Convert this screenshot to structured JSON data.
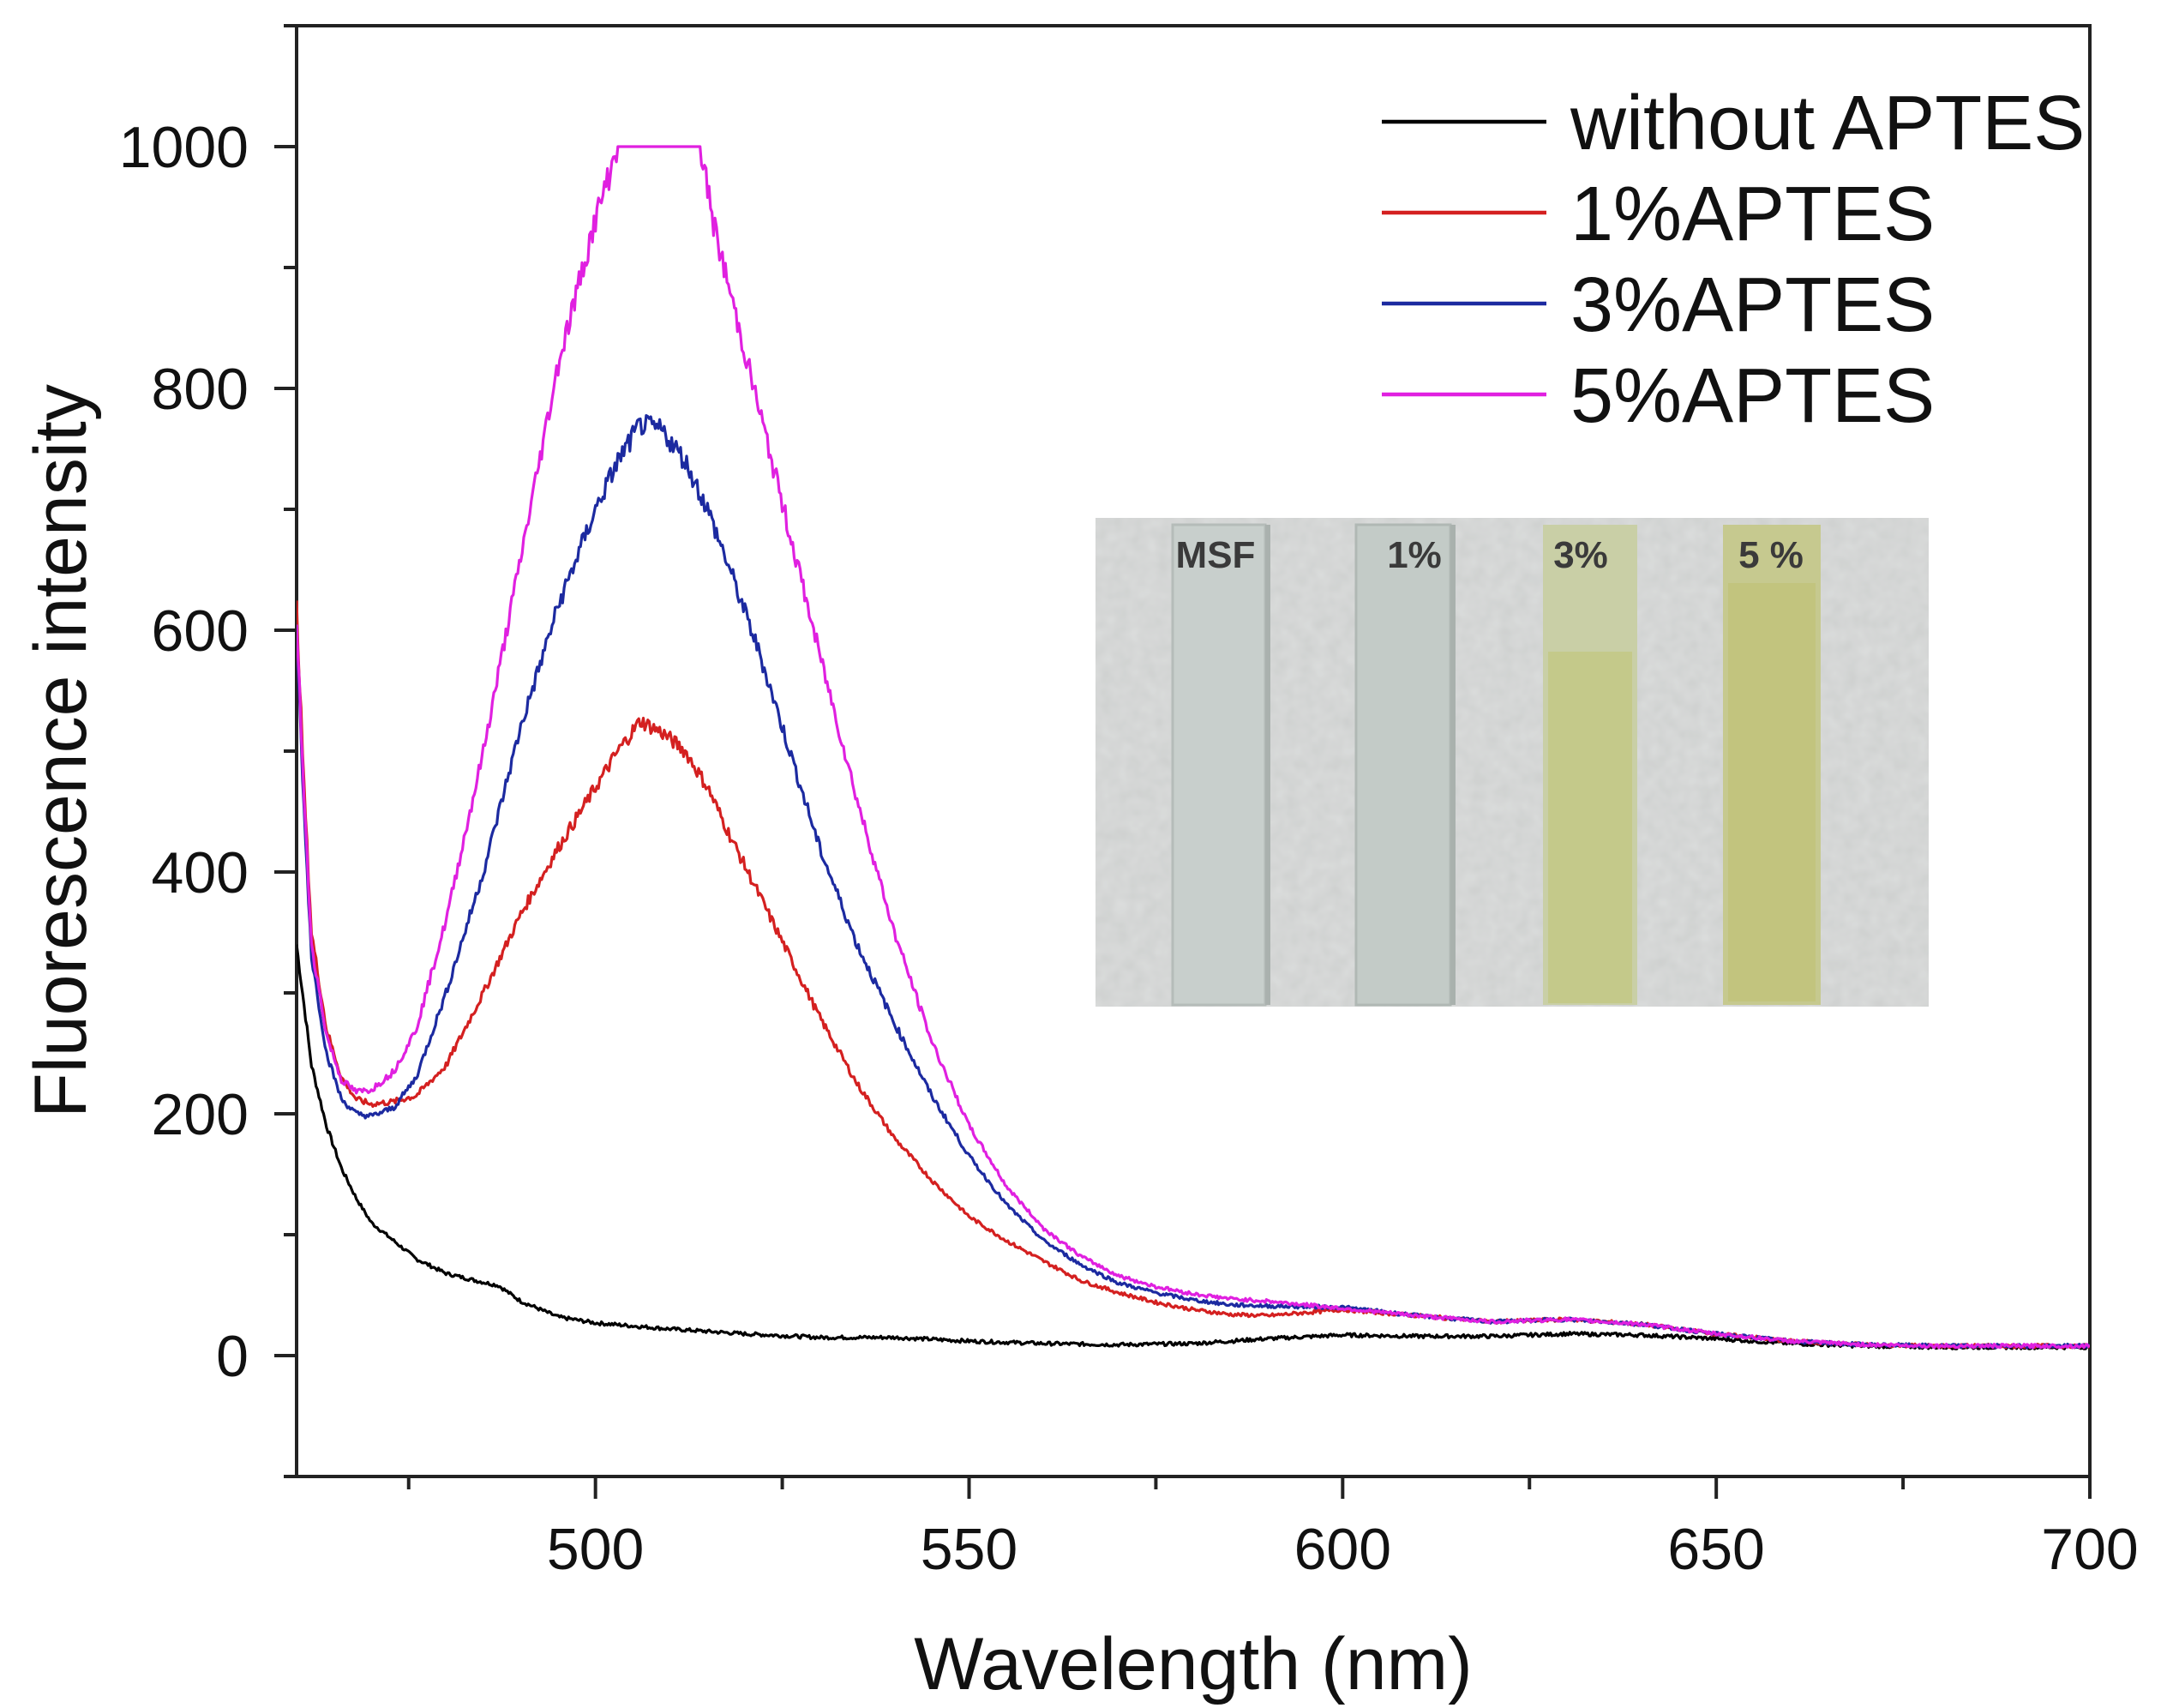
{
  "chart_data": {
    "type": "line",
    "title": "",
    "xlabel": "Wavelength (nm)",
    "ylabel": "Fluorescence intensity",
    "xlim": [
      460,
      700
    ],
    "ylim": [
      -100,
      1100
    ],
    "xticks": [
      500,
      550,
      600,
      650,
      700
    ],
    "yticks": [
      0,
      200,
      400,
      600,
      800,
      1000
    ],
    "grid": false,
    "legend_position": "top-right",
    "series": [
      {
        "name": "without APTES",
        "color": "#000000",
        "x": [
          460,
          461,
          462,
          464,
          466,
          468,
          470,
          473,
          476,
          480,
          484,
          487,
          490,
          495,
          500,
          510,
          520,
          530,
          540,
          550,
          560,
          570,
          580,
          590,
          600,
          610,
          620,
          630,
          640,
          650,
          660,
          670,
          680,
          690,
          700
        ],
        "y": [
          340,
          290,
          240,
          190,
          155,
          130,
          110,
          95,
          80,
          68,
          62,
          58,
          45,
          32,
          27,
          22,
          18,
          15,
          15,
          12,
          10,
          9,
          10,
          14,
          17,
          16,
          16,
          18,
          17,
          14,
          10,
          8,
          7,
          7,
          7
        ]
      },
      {
        "name": "1%APTES",
        "color": "#d42020",
        "x": [
          460,
          461,
          462,
          464,
          466,
          468,
          470,
          473,
          476,
          480,
          485,
          490,
          495,
          500,
          503,
          506,
          509,
          512,
          515,
          518,
          522,
          526,
          530,
          535,
          540,
          545,
          550,
          555,
          560,
          565,
          570,
          575,
          580,
          585,
          590,
          600,
          610,
          620,
          630,
          640,
          650,
          660,
          670,
          680,
          690,
          700
        ],
        "y": [
          620,
          470,
          350,
          270,
          230,
          212,
          208,
          210,
          215,
          240,
          300,
          365,
          420,
          470,
          500,
          525,
          515,
          500,
          470,
          430,
          380,
          330,
          280,
          225,
          180,
          145,
          115,
          95,
          78,
          62,
          52,
          44,
          38,
          34,
          33,
          38,
          33,
          28,
          30,
          26,
          18,
          12,
          9,
          8,
          8,
          8
        ]
      },
      {
        "name": "3%APTES",
        "color": "#1c2aa0",
        "x": [
          460,
          461,
          462,
          464,
          466,
          468,
          470,
          473,
          476,
          480,
          485,
          490,
          495,
          500,
          503,
          506,
          509,
          512,
          515,
          518,
          522,
          526,
          530,
          535,
          540,
          545,
          550,
          555,
          560,
          565,
          570,
          575,
          580,
          585,
          590,
          600,
          610,
          620,
          630,
          640,
          650,
          660,
          670,
          680,
          690,
          700
        ],
        "y": [
          600,
          450,
          330,
          250,
          212,
          200,
          198,
          205,
          230,
          300,
          400,
          520,
          620,
          700,
          740,
          770,
          765,
          740,
          700,
          650,
          580,
          500,
          420,
          340,
          275,
          215,
          165,
          125,
          95,
          75,
          60,
          52,
          46,
          42,
          41,
          40,
          33,
          28,
          30,
          26,
          18,
          12,
          9,
          8,
          8,
          8
        ]
      },
      {
        "name": "5%APTES",
        "color": "#e020e0",
        "x": [
          460,
          461,
          462,
          464,
          466,
          468,
          470,
          473,
          476,
          480,
          485,
          490,
          495,
          500,
          503,
          506,
          509,
          512,
          514,
          516,
          518,
          522,
          526,
          530,
          535,
          540,
          545,
          550,
          555,
          560,
          565,
          570,
          575,
          580,
          585,
          590,
          600,
          610,
          620,
          630,
          640,
          650,
          660,
          670,
          680,
          690,
          700
        ],
        "y": [
          610,
          460,
          340,
          265,
          228,
          218,
          220,
          235,
          270,
          360,
          500,
          660,
          820,
          940,
          1000,
          1000,
          1000,
          1000,
          1000,
          930,
          880,
          780,
          680,
          580,
          460,
          350,
          260,
          190,
          140,
          105,
          82,
          66,
          57,
          51,
          47,
          45,
          39,
          33,
          28,
          30,
          26,
          18,
          12,
          9,
          8,
          8,
          8
        ]
      }
    ],
    "inset": {
      "type": "photo",
      "labels": [
        "MSF",
        "1%",
        "3%",
        "5 %"
      ]
    }
  }
}
